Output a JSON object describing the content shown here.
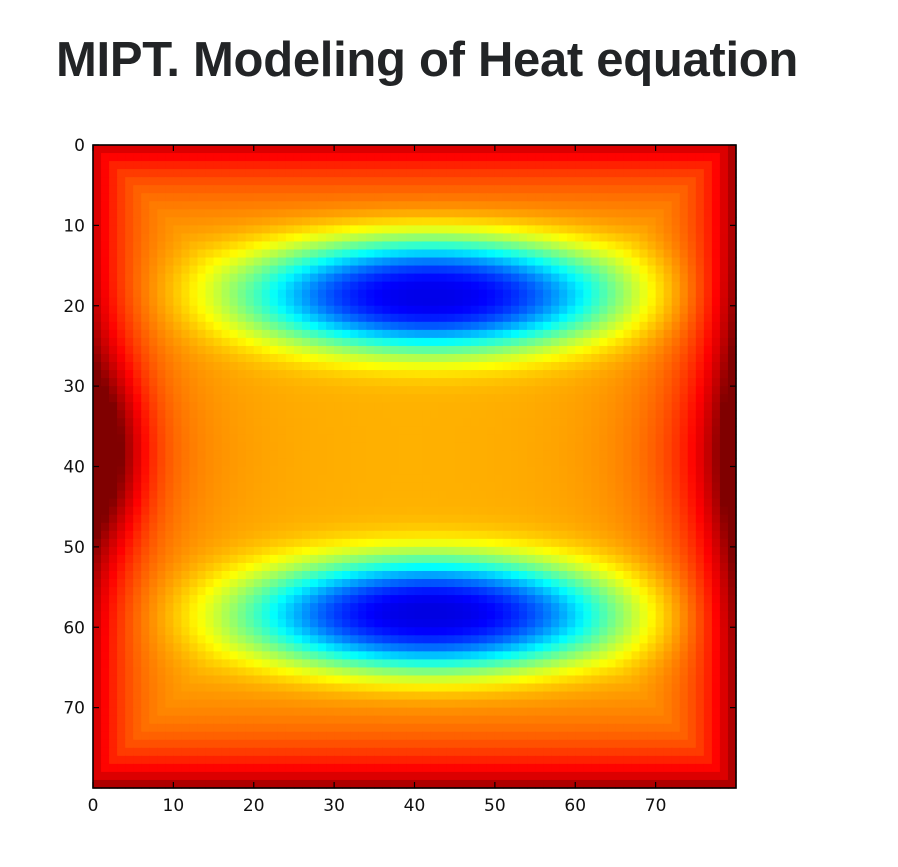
{
  "page": {
    "title": "MIPT. Modeling of Heat equation"
  },
  "chart_data": {
    "type": "heatmap",
    "title": "",
    "xlabel": "",
    "ylabel": "",
    "grid_size": [
      80,
      80
    ],
    "xlim": [
      0,
      80
    ],
    "ylim": [
      80,
      0
    ],
    "y_axis_inverted": true,
    "colormap": "jet",
    "x_ticks": [
      0,
      10,
      20,
      30,
      40,
      50,
      60,
      70
    ],
    "y_ticks": [
      0,
      10,
      20,
      30,
      40,
      50,
      60,
      70
    ],
    "value_range": [
      0,
      1
    ],
    "field_description": {
      "boundary_value": 0.93,
      "left_edge_peak": {
        "x": 0,
        "y": 38,
        "value": 1.0
      },
      "cold_bands": [
        {
          "y": 18.5,
          "x_range": [
            10,
            70
          ],
          "min_value": 0.05
        },
        {
          "y": 58.5,
          "x_range": [
            10,
            70
          ],
          "min_value": 0.05
        }
      ]
    },
    "colors": {
      "jet_stops": [
        "#00007f",
        "#0000ff",
        "#007fff",
        "#00ffff",
        "#7fff7f",
        "#ffff00",
        "#ff7f00",
        "#ff0000",
        "#7f0000"
      ]
    }
  }
}
